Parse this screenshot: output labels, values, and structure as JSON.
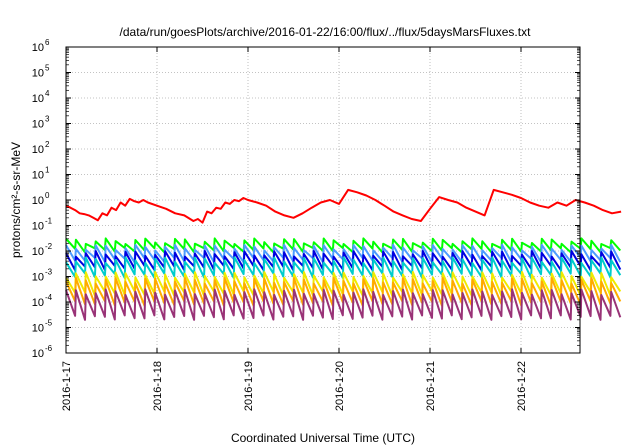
{
  "chart_data": {
    "type": "line",
    "title": "/data/run/goesPlots/archive/2016-01-22/16:00/flux/../flux/5daysMarsFluxes.txt",
    "xlabel": "Coordinated Universal Time (UTC)",
    "ylabel": "protons/cm²-s-sr-MeV",
    "ylim_log10": [
      -6,
      6
    ],
    "y_scale": "log",
    "xlim_days": [
      0,
      6.1
    ],
    "grid": true,
    "x_ticks": [
      "2016-1-17",
      "2016-1-18",
      "2016-1-19",
      "2016-1-20",
      "2016-1-21",
      "2016-1-22"
    ],
    "y_ticks": [
      {
        "base": "10",
        "exp": "6"
      },
      {
        "base": "10",
        "exp": "5"
      },
      {
        "base": "10",
        "exp": "4"
      },
      {
        "base": "10",
        "exp": "3"
      },
      {
        "base": "10",
        "exp": "2"
      },
      {
        "base": "10",
        "exp": "1"
      },
      {
        "base": "10",
        "exp": "0"
      },
      {
        "base": "10",
        "exp": "-1"
      },
      {
        "base": "10",
        "exp": "-2"
      },
      {
        "base": "10",
        "exp": "-3"
      },
      {
        "base": "10",
        "exp": "-4"
      },
      {
        "base": "10",
        "exp": "-5"
      },
      {
        "base": "10",
        "exp": "-6"
      }
    ],
    "series": [
      {
        "color": "#ff0000",
        "x": [
          0,
          0.05,
          0.1,
          0.15,
          0.2,
          0.25,
          0.3,
          0.35,
          0.4,
          0.45,
          0.5,
          0.55,
          0.6,
          0.65,
          0.7,
          0.75,
          0.8,
          0.85,
          0.9,
          1.0,
          1.1,
          1.2,
          1.3,
          1.4,
          1.45,
          1.5,
          1.55,
          1.6,
          1.65,
          1.7,
          1.75,
          1.8,
          1.85,
          1.9,
          1.95,
          2.0,
          2.1,
          2.2,
          2.3,
          2.4,
          2.5,
          2.6,
          2.7,
          2.8,
          2.9,
          3.0,
          3.1,
          3.2,
          3.3,
          3.4,
          3.5,
          3.6,
          3.7,
          3.8,
          3.9,
          4.0,
          4.1,
          4.2,
          4.3,
          4.4,
          4.5,
          4.6,
          4.7,
          4.8,
          4.9,
          5.0,
          5.1,
          5.2,
          5.3,
          5.4,
          5.5,
          5.6,
          5.7,
          5.8,
          5.9,
          6.0,
          6.1
        ],
        "y": [
          0.6,
          0.5,
          0.4,
          0.3,
          0.28,
          0.25,
          0.2,
          0.16,
          0.3,
          0.25,
          0.5,
          0.4,
          0.8,
          0.6,
          1.1,
          0.9,
          0.8,
          1.0,
          0.8,
          0.6,
          0.45,
          0.3,
          0.25,
          0.15,
          0.18,
          0.13,
          0.35,
          0.3,
          0.5,
          0.45,
          0.8,
          0.7,
          1.0,
          0.9,
          1.2,
          1.0,
          0.8,
          0.6,
          0.35,
          0.25,
          0.2,
          0.3,
          0.5,
          0.8,
          1.0,
          0.7,
          2.5,
          2.0,
          1.5,
          1.0,
          0.6,
          0.35,
          0.25,
          0.18,
          0.15,
          0.45,
          1.3,
          1.0,
          0.8,
          0.5,
          0.35,
          0.25,
          2.5,
          2.0,
          1.6,
          1.2,
          0.8,
          0.6,
          0.5,
          0.8,
          0.6,
          1.0,
          0.8,
          0.6,
          0.4,
          0.3,
          0.35
        ]
      },
      {
        "color": "#00ff00",
        "base": 0.011,
        "peak": 0.025
      },
      {
        "color": "#4c9cff",
        "base": 0.0045,
        "peak": 0.014
      },
      {
        "color": "#0000e0",
        "base": 0.0022,
        "peak": 0.008
      },
      {
        "color": "#00cccc",
        "base": 0.0011,
        "peak": 0.0045
      },
      {
        "color": "#f0ea00",
        "base": 0.00022,
        "peak": 0.0012
      },
      {
        "color": "#ffaa00",
        "base": 9e-05,
        "peak": 0.0007
      },
      {
        "color": "#993377",
        "base": 2.5e-05,
        "peak": 0.00025
      }
    ]
  }
}
